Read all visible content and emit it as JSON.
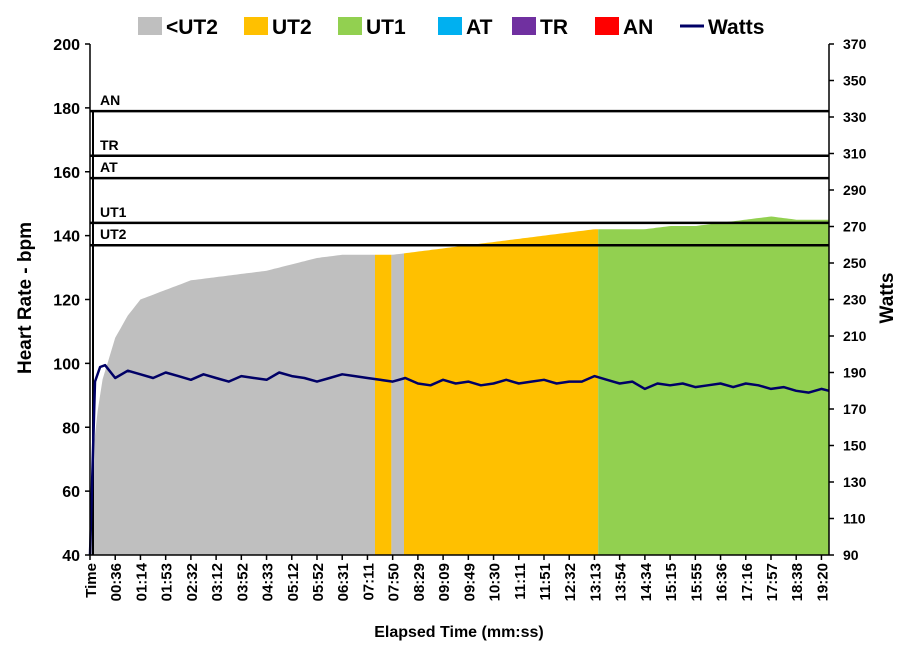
{
  "chart_data": {
    "type": "area",
    "title": "",
    "xlabel": "Elapsed Time (mm:ss)",
    "ylabel": "Heart Rate - bpm",
    "y2label": "Watts",
    "ylim": [
      40,
      200
    ],
    "y2lim": [
      90,
      370
    ],
    "y_ticks": [
      "40",
      "60",
      "80",
      "100",
      "120",
      "140",
      "160",
      "180",
      "200"
    ],
    "y2_ticks": [
      "90",
      "110",
      "130",
      "150",
      "170",
      "190",
      "210",
      "230",
      "250",
      "270",
      "290",
      "310",
      "330",
      "350",
      "370"
    ],
    "x_tick_labels": [
      "Time",
      "00:36",
      "01:14",
      "01:53",
      "02:32",
      "03:12",
      "03:52",
      "04:33",
      "05:12",
      "05:52",
      "06:31",
      "07:11",
      "07:50",
      "08:29",
      "09:09",
      "09:49",
      "10:30",
      "11:11",
      "11:51",
      "12:32",
      "13:13",
      "13:54",
      "14:34",
      "15:15",
      "15:55",
      "16:36",
      "17:16",
      "17:57",
      "18:38",
      "19:20"
    ],
    "legend": {
      "position": "top",
      "entries": [
        {
          "name": "<UT2",
          "color": "#bfbfbf",
          "kind": "area"
        },
        {
          "name": "UT2",
          "color": "#ffc000",
          "kind": "area"
        },
        {
          "name": "UT1",
          "color": "#92d050",
          "kind": "area"
        },
        {
          "name": "AT",
          "color": "#00b0f0",
          "kind": "area"
        },
        {
          "name": "TR",
          "color": "#7030a0",
          "kind": "area"
        },
        {
          "name": "AN",
          "color": "#ff0000",
          "kind": "area"
        },
        {
          "name": "Watts",
          "color": "#000066",
          "kind": "line"
        }
      ]
    },
    "zone_thresholds": [
      {
        "label": "UT2",
        "hr": 137
      },
      {
        "label": "UT1",
        "hr": 144
      },
      {
        "label": "AT",
        "hr": 158
      },
      {
        "label": "TR",
        "hr": 165
      },
      {
        "label": "AN",
        "hr": 179
      }
    ],
    "heart_rate_series": {
      "time_index": [
        0,
        0.1,
        0.3,
        0.5,
        1,
        1.5,
        2,
        3,
        4,
        5,
        6,
        7,
        8,
        9,
        10,
        11,
        12,
        13,
        14,
        15,
        16,
        17,
        18,
        19,
        20,
        21,
        22,
        23,
        24,
        25,
        26,
        27,
        28,
        29
      ],
      "hr": [
        40,
        70,
        85,
        95,
        108,
        115,
        120,
        123,
        126,
        127,
        128,
        129,
        131,
        133,
        134,
        134,
        134,
        135,
        136,
        137,
        138,
        139,
        140,
        141,
        142,
        142,
        142,
        143,
        143,
        144,
        145,
        146,
        145,
        145
      ],
      "zone_segments": [
        {
          "zone": "<UT2",
          "from": 0,
          "to": 11.3
        },
        {
          "zone": "UT2",
          "from": 11.3,
          "to": 11.95
        },
        {
          "zone": "<UT2",
          "from": 11.95,
          "to": 12.45
        },
        {
          "zone": "UT2",
          "from": 12.45,
          "to": 20.15
        },
        {
          "zone": "UT1",
          "from": 20.15,
          "to": 29.3
        }
      ]
    },
    "watts_series": {
      "time_index": [
        0,
        0.2,
        0.4,
        0.6,
        1,
        1.5,
        2,
        2.5,
        3,
        3.5,
        4,
        4.5,
        5,
        5.5,
        6,
        6.5,
        7,
        7.5,
        8,
        8.5,
        9,
        9.5,
        10,
        10.5,
        11,
        11.5,
        12,
        12.5,
        13,
        13.5,
        14,
        14.5,
        15,
        15.5,
        16,
        16.5,
        17,
        17.5,
        18,
        18.5,
        19,
        19.5,
        20,
        20.5,
        21,
        21.5,
        22,
        22.5,
        23,
        23.5,
        24,
        24.5,
        25,
        25.5,
        26,
        26.5,
        27,
        27.5,
        28,
        28.5,
        29,
        29.3
      ],
      "watts": [
        90,
        185,
        193,
        194,
        187,
        191,
        189,
        187,
        190,
        188,
        186,
        189,
        187,
        185,
        188,
        187,
        186,
        190,
        188,
        187,
        185,
        187,
        189,
        188,
        187,
        186,
        185,
        187,
        184,
        183,
        186,
        184,
        185,
        183,
        184,
        186,
        184,
        185,
        186,
        184,
        185,
        185,
        188,
        186,
        184,
        185,
        181,
        184,
        183,
        184,
        182,
        183,
        184,
        182,
        184,
        183,
        181,
        182,
        180,
        179,
        181,
        180
      ]
    }
  }
}
